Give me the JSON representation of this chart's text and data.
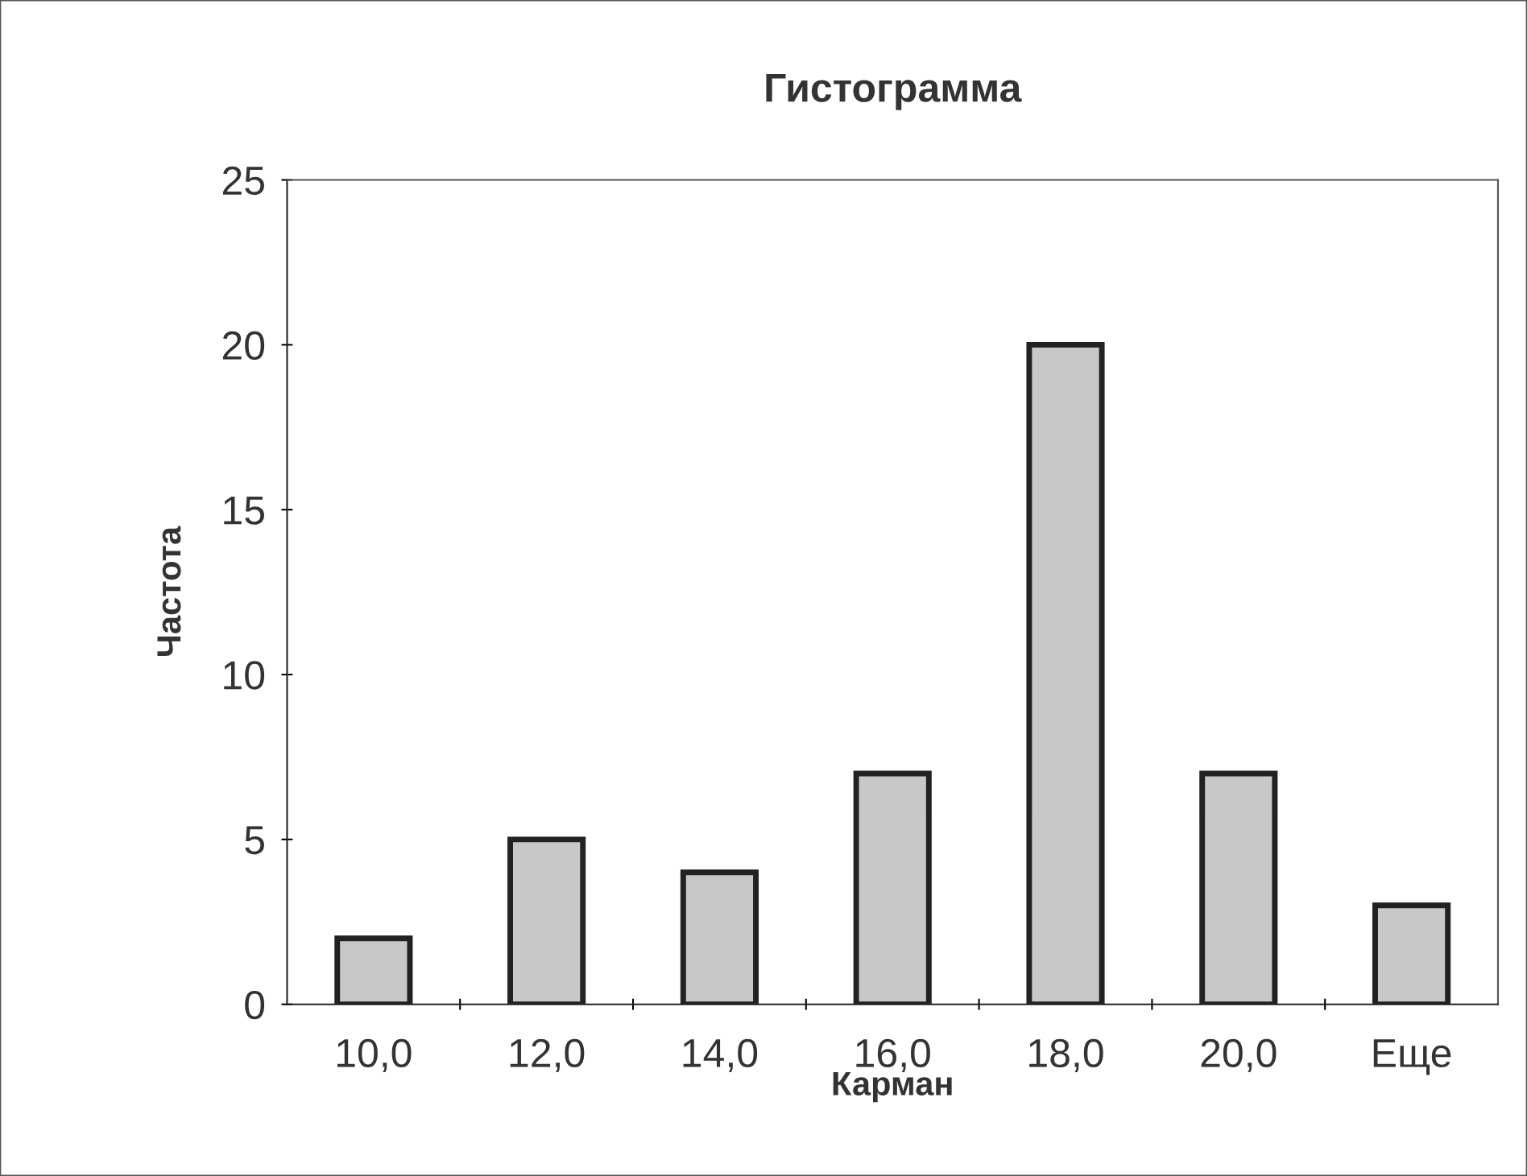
{
  "chart_data": {
    "type": "bar",
    "title": "Гистограмма",
    "xlabel": "Карман",
    "ylabel": "Частота",
    "categories": [
      "10,0",
      "12,0",
      "14,0",
      "16,0",
      "18,0",
      "20,0",
      "Еще"
    ],
    "values": [
      2,
      5,
      4,
      7,
      20,
      7,
      3
    ],
    "color": "#c8c8c8",
    "ylim": [
      0,
      25
    ],
    "yticks": [
      0,
      5,
      10,
      15,
      20,
      25
    ],
    "grid": false,
    "legend": false
  }
}
